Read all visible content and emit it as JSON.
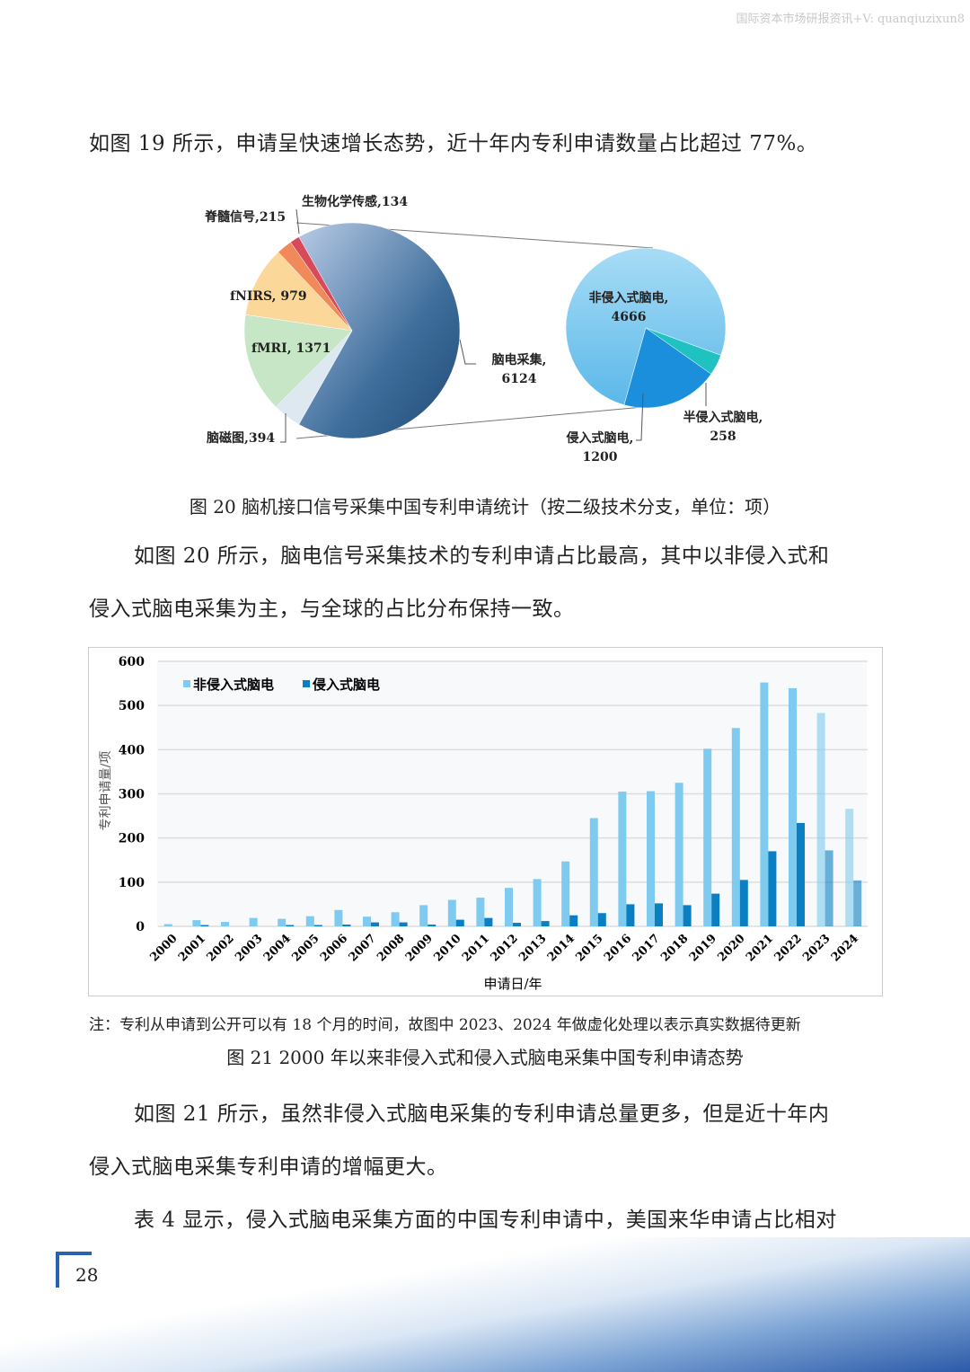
{
  "watermark": "国际资本市场研报资讯+V: quanqiuzixun8",
  "para1": "如图 19 所示，申请呈快速增长态势，近十年内专利申请数量占比超过 77%。",
  "fig20_caption": "图 20  脑机接口信号采集中国专利申请统计（按二级技术分支，单位：项）",
  "para2_line1": "如图 20 所示，脑电信号采集技术的专利申请占比最高，其中以非侵入式和",
  "para2_line2": "侵入式脑电采集为主，与全球的占比分布保持一致。",
  "note": "注：专利从申请到公开可以有 18 个月的时间，故图中 2023、2024 年做虚化处理以表示真实数据待更新",
  "fig21_caption": "图 21 2000 年以来非侵入式和侵入式脑电采集中国专利申请态势",
  "para3_line1": "如图 21 所示，虽然非侵入式脑电采集的专利申请总量更多，但是近十年内",
  "para3_line2": "侵入式脑电采集专利申请的增幅更大。",
  "para4_line1": "表 4 显示，侵入式脑电采集方面的中国专利申请中，美国来华申请占比相对",
  "page_number": "28",
  "chart_data": [
    {
      "type": "pie",
      "slices": [
        {
          "name": "脑电采集",
          "value": 6124,
          "label": [
            "脑电采集,",
            "6124"
          ],
          "color": "#2f5f8f"
        },
        {
          "name": "脑磁图",
          "value": 394,
          "label": [
            "脑磁图,394"
          ],
          "color": "#dde8f0"
        },
        {
          "name": "fMRI",
          "value": 1371,
          "label": [
            "fMRI, 1371"
          ],
          "color": "#c6e6c6"
        },
        {
          "name": "fNIRS",
          "value": 979,
          "label": [
            "fNIRS, 979"
          ],
          "color": "#fcd79a"
        },
        {
          "name": "脊髓信号",
          "value": 215,
          "label": [
            "脊髓信号,215"
          ],
          "color": "#f08a5a"
        },
        {
          "name": "生物化学传感",
          "value": 134,
          "label": [
            "生物化学传感,134"
          ],
          "color": "#d84a5a"
        }
      ]
    },
    {
      "type": "pie",
      "slices": [
        {
          "name": "非侵入式脑电",
          "value": 4666,
          "label": [
            "非侵入式脑电,",
            "4666"
          ],
          "color": "#7cc8ee"
        },
        {
          "name": "半侵入式脑电",
          "value": 258,
          "label": [
            "半侵入式脑电,",
            "258"
          ],
          "color": "#1fc2c0"
        },
        {
          "name": "侵入式脑电",
          "value": 1200,
          "label": [
            "侵入式脑电,",
            "1200"
          ],
          "color": "#1b8fdc"
        }
      ]
    },
    {
      "type": "bar",
      "xlabel": "申请日/年",
      "ylabel": "专利申请量/项",
      "ylim": [
        0,
        600
      ],
      "yticks": [
        0,
        100,
        200,
        300,
        400,
        500,
        600
      ],
      "grid": true,
      "legend": "top-left",
      "categories": [
        "2000",
        "2001",
        "2002",
        "2003",
        "2004",
        "2005",
        "2006",
        "2007",
        "2008",
        "2009",
        "2010",
        "2011",
        "2012",
        "2013",
        "2014",
        "2015",
        "2016",
        "2017",
        "2018",
        "2019",
        "2020",
        "2021",
        "2022",
        "2023",
        "2024"
      ],
      "faded_categories": [
        "2023",
        "2024"
      ],
      "series": [
        {
          "name": "非侵入式脑电",
          "color": "#7fcbef",
          "values": [
            5,
            14,
            10,
            19,
            17,
            23,
            37,
            22,
            32,
            48,
            60,
            65,
            87,
            107,
            147,
            245,
            305,
            306,
            325,
            402,
            449,
            552,
            539,
            483,
            266
          ]
        },
        {
          "name": "侵入式脑电",
          "color": "#0a7fc2",
          "values": [
            0,
            3,
            0,
            0,
            3,
            3,
            4,
            9,
            9,
            4,
            15,
            19,
            8,
            12,
            25,
            30,
            50,
            52,
            48,
            74,
            105,
            170,
            234,
            172,
            104
          ]
        }
      ]
    }
  ]
}
